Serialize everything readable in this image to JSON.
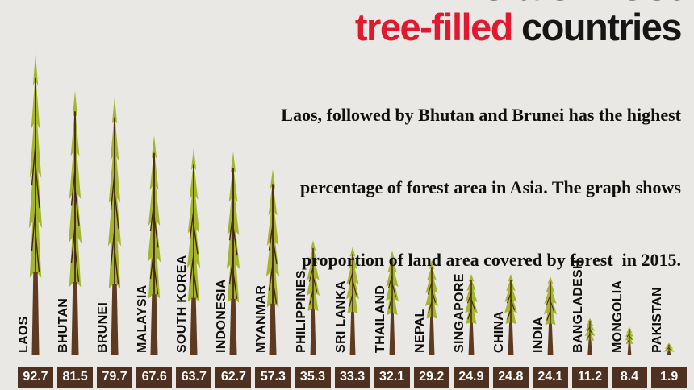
{
  "title": {
    "line1": "Asia's most",
    "line2_accent": "tree-filled",
    "line2_rest": "countries"
  },
  "subtitle": {
    "lines": [
      "Laos, followed by Bhutan and Brunei has the highest",
      "percentage of forest area in Asia. The graph shows",
      "proportion of land area covered by forest  in 2015."
    ]
  },
  "chart_data": {
    "type": "bar",
    "title": "Asia's most tree-filled countries",
    "ylabel": "% of land area covered by forest",
    "year_shown": "2015",
    "bar_style": "tree-pictogram",
    "ylim": [
      0,
      100
    ],
    "categories": [
      "LAOS",
      "BHUTAN",
      "BRUNEI",
      "MALAYSIA",
      "SOUTH KOREA",
      "INDONESIA",
      "MYANMAR",
      "PHILIPPINES",
      "SRI LANKA",
      "THAILAND",
      "NEPAL",
      "SINGAPORE",
      "CHINA",
      "INDIA",
      "BANGLADESH",
      "MONGOLIA",
      "PAKISTAN"
    ],
    "values": [
      92.7,
      81.5,
      79.7,
      67.6,
      63.7,
      62.7,
      57.3,
      35.3,
      33.3,
      32.1,
      29.2,
      24.9,
      24.8,
      24.1,
      11.2,
      8.4,
      1.9
    ]
  },
  "colors": {
    "background": "#e9e8e4",
    "tree_green": "#a4b42f",
    "trunk_brown": "#5e3a21",
    "branch_dark": "#42250f",
    "value_box": "#4e3120",
    "value_text": "#ffffff",
    "accent_red": "#e2182e",
    "text_black": "#161616"
  }
}
